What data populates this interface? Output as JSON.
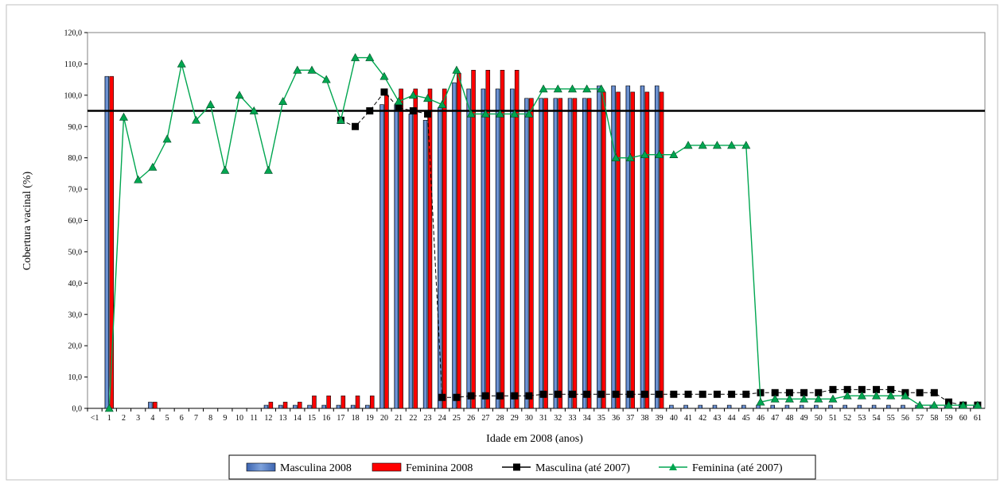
{
  "chart_data": {
    "type": "bar",
    "xlabel": "Idade em 2008 (anos)",
    "ylabel": "Cobertura vacinal (%)",
    "ylim": [
      0,
      120
    ],
    "yticks": [
      "0,0",
      "10,0",
      "20,0",
      "30,0",
      "40,0",
      "50,0",
      "60,0",
      "70,0",
      "80,0",
      "90,0",
      "100,0",
      "110,0",
      "120,0"
    ],
    "reference_line": 95,
    "grid": false,
    "legend_position": "bottom",
    "categories": [
      "<1",
      "1",
      "2",
      "3",
      "4",
      "5",
      "6",
      "7",
      "8",
      "9",
      "10",
      "11",
      "12",
      "13",
      "14",
      "15",
      "16",
      "17",
      "18",
      "19",
      "20",
      "21",
      "22",
      "23",
      "24",
      "25",
      "26",
      "27",
      "28",
      "29",
      "30",
      "31",
      "32",
      "33",
      "34",
      "35",
      "36",
      "37",
      "38",
      "39",
      "40",
      "41",
      "42",
      "43",
      "44",
      "45",
      "46",
      "47",
      "48",
      "49",
      "50",
      "51",
      "52",
      "53",
      "54",
      "55",
      "56",
      "57",
      "58",
      "59",
      "60",
      "61"
    ],
    "series": [
      {
        "name": "Masculina 2008",
        "kind": "bar",
        "color": "#5b84c4",
        "values": [
          0,
          106,
          0,
          0,
          2,
          0,
          0,
          0,
          0,
          0,
          0,
          0,
          1,
          1,
          1,
          1,
          1,
          1,
          1,
          1,
          97,
          97,
          94,
          92,
          96,
          104,
          102,
          102,
          102,
          102,
          99,
          99,
          99,
          99,
          99,
          103,
          103,
          103,
          103,
          103,
          1,
          1,
          1,
          1,
          1,
          1,
          1,
          1,
          1,
          1,
          1,
          1,
          1,
          1,
          1,
          1,
          1,
          1,
          1,
          1,
          1,
          1
        ]
      },
      {
        "name": "Feminina 2008",
        "kind": "bar",
        "color": "#ff0000",
        "values": [
          0,
          106,
          0,
          0,
          2,
          0,
          0,
          0,
          0,
          0,
          0,
          0,
          2,
          2,
          2,
          4,
          4,
          4,
          4,
          4,
          100,
          102,
          102,
          102,
          102,
          107,
          108,
          108,
          108,
          108,
          99,
          99,
          99,
          99,
          99,
          101,
          101,
          101,
          101,
          101,
          0,
          0,
          0,
          0,
          0,
          0,
          0,
          0,
          0,
          0,
          0,
          0,
          0,
          0,
          0,
          0,
          0,
          0,
          0,
          0,
          0,
          0
        ]
      },
      {
        "name": "Masculina (até 2007)",
        "kind": "line",
        "color": "#000000",
        "values": [
          null,
          null,
          null,
          null,
          null,
          null,
          null,
          null,
          null,
          null,
          null,
          null,
          null,
          null,
          null,
          null,
          null,
          92,
          90,
          95,
          101,
          96,
          95,
          94,
          3.5,
          3.5,
          4,
          4,
          4,
          4,
          4,
          4.5,
          4.5,
          4.5,
          4.5,
          4.5,
          4.5,
          4.5,
          4.5,
          4.5,
          4.5,
          4.5,
          4.5,
          4.5,
          4.5,
          4.5,
          5,
          5,
          5,
          5,
          5,
          6,
          6,
          6,
          6,
          6,
          5,
          5,
          5,
          2,
          1,
          1
        ]
      },
      {
        "name": "Feminina (até 2007)",
        "kind": "line",
        "color": "#00a650",
        "values": [
          null,
          0,
          93,
          73,
          77,
          86,
          110,
          92,
          97,
          76,
          100,
          95,
          76,
          98,
          108,
          108,
          105,
          92,
          112,
          112,
          106,
          98,
          100,
          99,
          97,
          108,
          94,
          94,
          94,
          94,
          94,
          102,
          102,
          102,
          102,
          102,
          80,
          80,
          81,
          81,
          81,
          84,
          84,
          84,
          84,
          84,
          2,
          3,
          3,
          3,
          3,
          3,
          4,
          4,
          4,
          4,
          4,
          1,
          1,
          1,
          1,
          1
        ]
      }
    ]
  }
}
